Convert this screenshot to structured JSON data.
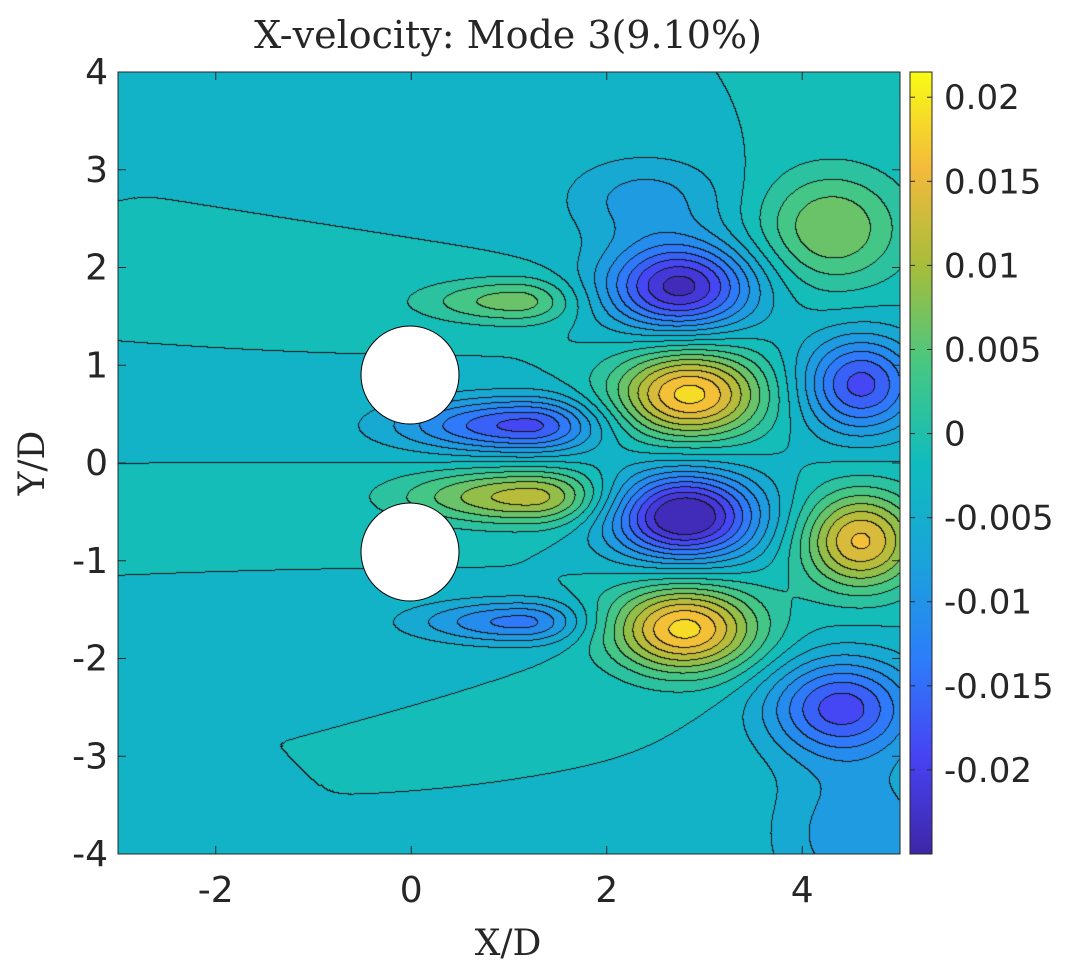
{
  "chart_data": {
    "type": "contourf",
    "title": "X-velocity: Mode 3(9.10%)",
    "xlabel": "X/D",
    "ylabel": "Y/D",
    "xlim": [
      -3,
      5
    ],
    "ylim": [
      -4,
      4
    ],
    "xticks": [
      -2,
      0,
      2,
      4
    ],
    "yticks": [
      -4,
      -3,
      -2,
      -1,
      0,
      1,
      2,
      3,
      4
    ],
    "xtick_labels": [
      "-2",
      "0",
      "2",
      "4"
    ],
    "ytick_labels": [
      "-4",
      "-3",
      "-2",
      "-1",
      "0",
      "1",
      "2",
      "3",
      "4"
    ],
    "colorbar": {
      "ticks": [
        0.02,
        0.015,
        0.01,
        0.005,
        0,
        -0.005,
        -0.01,
        -0.015,
        -0.02
      ],
      "labels": [
        "0.02",
        "0.015",
        "0.01",
        "0.005",
        "0",
        "-0.005",
        "-0.01",
        "-0.015",
        "-0.02"
      ],
      "range": [
        -0.025,
        0.0215
      ],
      "colormap": "parula"
    },
    "cylinders": [
      {
        "cx": 0,
        "cy": 0.9,
        "r": 0.5
      },
      {
        "cx": 0,
        "cy": -0.9,
        "r": 0.5
      }
    ],
    "background_level": -0.0025,
    "structures": [
      {
        "cx": 1.1,
        "cy": 1.65,
        "rx": 0.55,
        "ry": 0.23,
        "amp": 0.009,
        "tail": true
      },
      {
        "cx": 1.2,
        "cy": 0.38,
        "rx": 0.7,
        "ry": 0.28,
        "amp": -0.016,
        "tail": true
      },
      {
        "cx": 1.25,
        "cy": -0.35,
        "rx": 0.7,
        "ry": 0.28,
        "amp": 0.014,
        "tail": true
      },
      {
        "cx": 1.15,
        "cy": -1.63,
        "rx": 0.6,
        "ry": 0.22,
        "amp": -0.011,
        "tail": true
      },
      {
        "cx": 2.75,
        "cy": 1.8,
        "rx": 0.75,
        "ry": 0.45,
        "amp": -0.021
      },
      {
        "cx": 2.85,
        "cy": 0.7,
        "rx": 0.75,
        "ry": 0.45,
        "amp": 0.021
      },
      {
        "cx": 2.8,
        "cy": -0.55,
        "rx": 0.75,
        "ry": 0.45,
        "amp": -0.024
      },
      {
        "cx": 2.8,
        "cy": -1.7,
        "rx": 0.75,
        "ry": 0.45,
        "amp": 0.021
      },
      {
        "cx": 4.3,
        "cy": 2.4,
        "rx": 0.75,
        "ry": 0.6,
        "amp": 0.01
      },
      {
        "cx": 4.6,
        "cy": 0.8,
        "rx": 0.6,
        "ry": 0.5,
        "amp": -0.016
      },
      {
        "cx": 4.6,
        "cy": -0.8,
        "rx": 0.6,
        "ry": 0.5,
        "amp": 0.018
      },
      {
        "cx": 4.4,
        "cy": -2.5,
        "rx": 0.75,
        "ry": 0.5,
        "amp": -0.016
      },
      {
        "cx": 2.4,
        "cy": 2.7,
        "rx": 0.85,
        "ry": 0.45,
        "amp": -0.006
      },
      {
        "cx": 4.6,
        "cy": -3.8,
        "rx": 0.9,
        "ry": 0.8,
        "amp": -0.007
      }
    ]
  }
}
